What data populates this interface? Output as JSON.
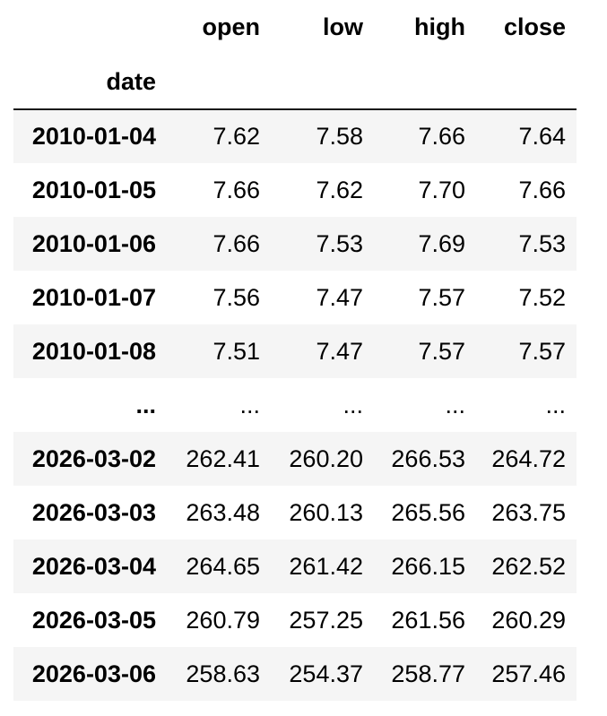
{
  "chart_data": {
    "type": "table",
    "index_name": "date",
    "columns": [
      "open",
      "low",
      "high",
      "close"
    ],
    "rows": [
      {
        "date": "2010-01-04",
        "values": [
          "7.62",
          "7.58",
          "7.66",
          "7.64"
        ]
      },
      {
        "date": "2010-01-05",
        "values": [
          "7.66",
          "7.62",
          "7.70",
          "7.66"
        ]
      },
      {
        "date": "2010-01-06",
        "values": [
          "7.66",
          "7.53",
          "7.69",
          "7.53"
        ]
      },
      {
        "date": "2010-01-07",
        "values": [
          "7.56",
          "7.47",
          "7.57",
          "7.52"
        ]
      },
      {
        "date": "2010-01-08",
        "values": [
          "7.51",
          "7.47",
          "7.57",
          "7.57"
        ]
      },
      {
        "date": "...",
        "values": [
          "...",
          "...",
          "...",
          "..."
        ]
      },
      {
        "date": "2026-03-02",
        "values": [
          "262.41",
          "260.20",
          "266.53",
          "264.72"
        ]
      },
      {
        "date": "2026-03-03",
        "values": [
          "263.48",
          "260.13",
          "265.56",
          "263.75"
        ]
      },
      {
        "date": "2026-03-04",
        "values": [
          "264.65",
          "261.42",
          "266.15",
          "262.52"
        ]
      },
      {
        "date": "2026-03-05",
        "values": [
          "260.79",
          "257.25",
          "261.56",
          "260.29"
        ]
      },
      {
        "date": "2026-03-06",
        "values": [
          "258.63",
          "254.37",
          "258.77",
          "257.46"
        ]
      }
    ],
    "layout": {
      "striped": true,
      "stripe_start": "first-row",
      "header_rule": "2px solid"
    }
  },
  "colors": {
    "stripe": "#f5f5f5",
    "header_border": "#1a1a1a",
    "text": "#000000",
    "background": "#ffffff"
  }
}
